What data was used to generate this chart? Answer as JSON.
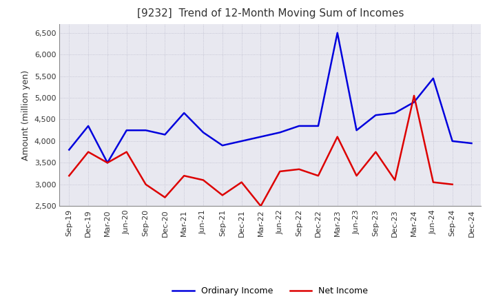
{
  "title": "[9232]  Trend of 12-Month Moving Sum of Incomes",
  "ylabel": "Amount (million yen)",
  "x_labels": [
    "Sep-19",
    "Dec-19",
    "Mar-20",
    "Jun-20",
    "Sep-20",
    "Dec-20",
    "Mar-21",
    "Jun-21",
    "Sep-21",
    "Dec-21",
    "Mar-22",
    "Jun-22",
    "Sep-22",
    "Dec-22",
    "Mar-23",
    "Jun-23",
    "Sep-23",
    "Dec-23",
    "Mar-24",
    "Jun-24",
    "Sep-24",
    "Dec-24"
  ],
  "ordinary_income": [
    3800,
    4350,
    3500,
    4250,
    4250,
    4150,
    4650,
    4200,
    3900,
    4000,
    4100,
    4200,
    4350,
    4350,
    6500,
    4250,
    4600,
    4650,
    4900,
    5450,
    4000,
    3950
  ],
  "net_income": [
    3200,
    3750,
    3500,
    3750,
    3000,
    2700,
    3200,
    3100,
    2750,
    3050,
    2500,
    3300,
    3350,
    3200,
    4100,
    3200,
    3750,
    3100,
    5050,
    3050,
    3000,
    null
  ],
  "ordinary_color": "#0000dd",
  "net_color": "#dd0000",
  "ylim": [
    2500,
    6700
  ],
  "yticks": [
    2500,
    3000,
    3500,
    4000,
    4500,
    5000,
    5500,
    6000,
    6500
  ],
  "bg_color": "#ffffff",
  "plot_bg_color": "#e8e8f0",
  "grid_color": "#bbbbcc",
  "title_color": "#333333",
  "legend_labels": [
    "Ordinary Income",
    "Net Income"
  ],
  "title_fontsize": 11,
  "ylabel_fontsize": 9,
  "tick_fontsize": 8,
  "legend_fontsize": 9,
  "linewidth": 1.8
}
